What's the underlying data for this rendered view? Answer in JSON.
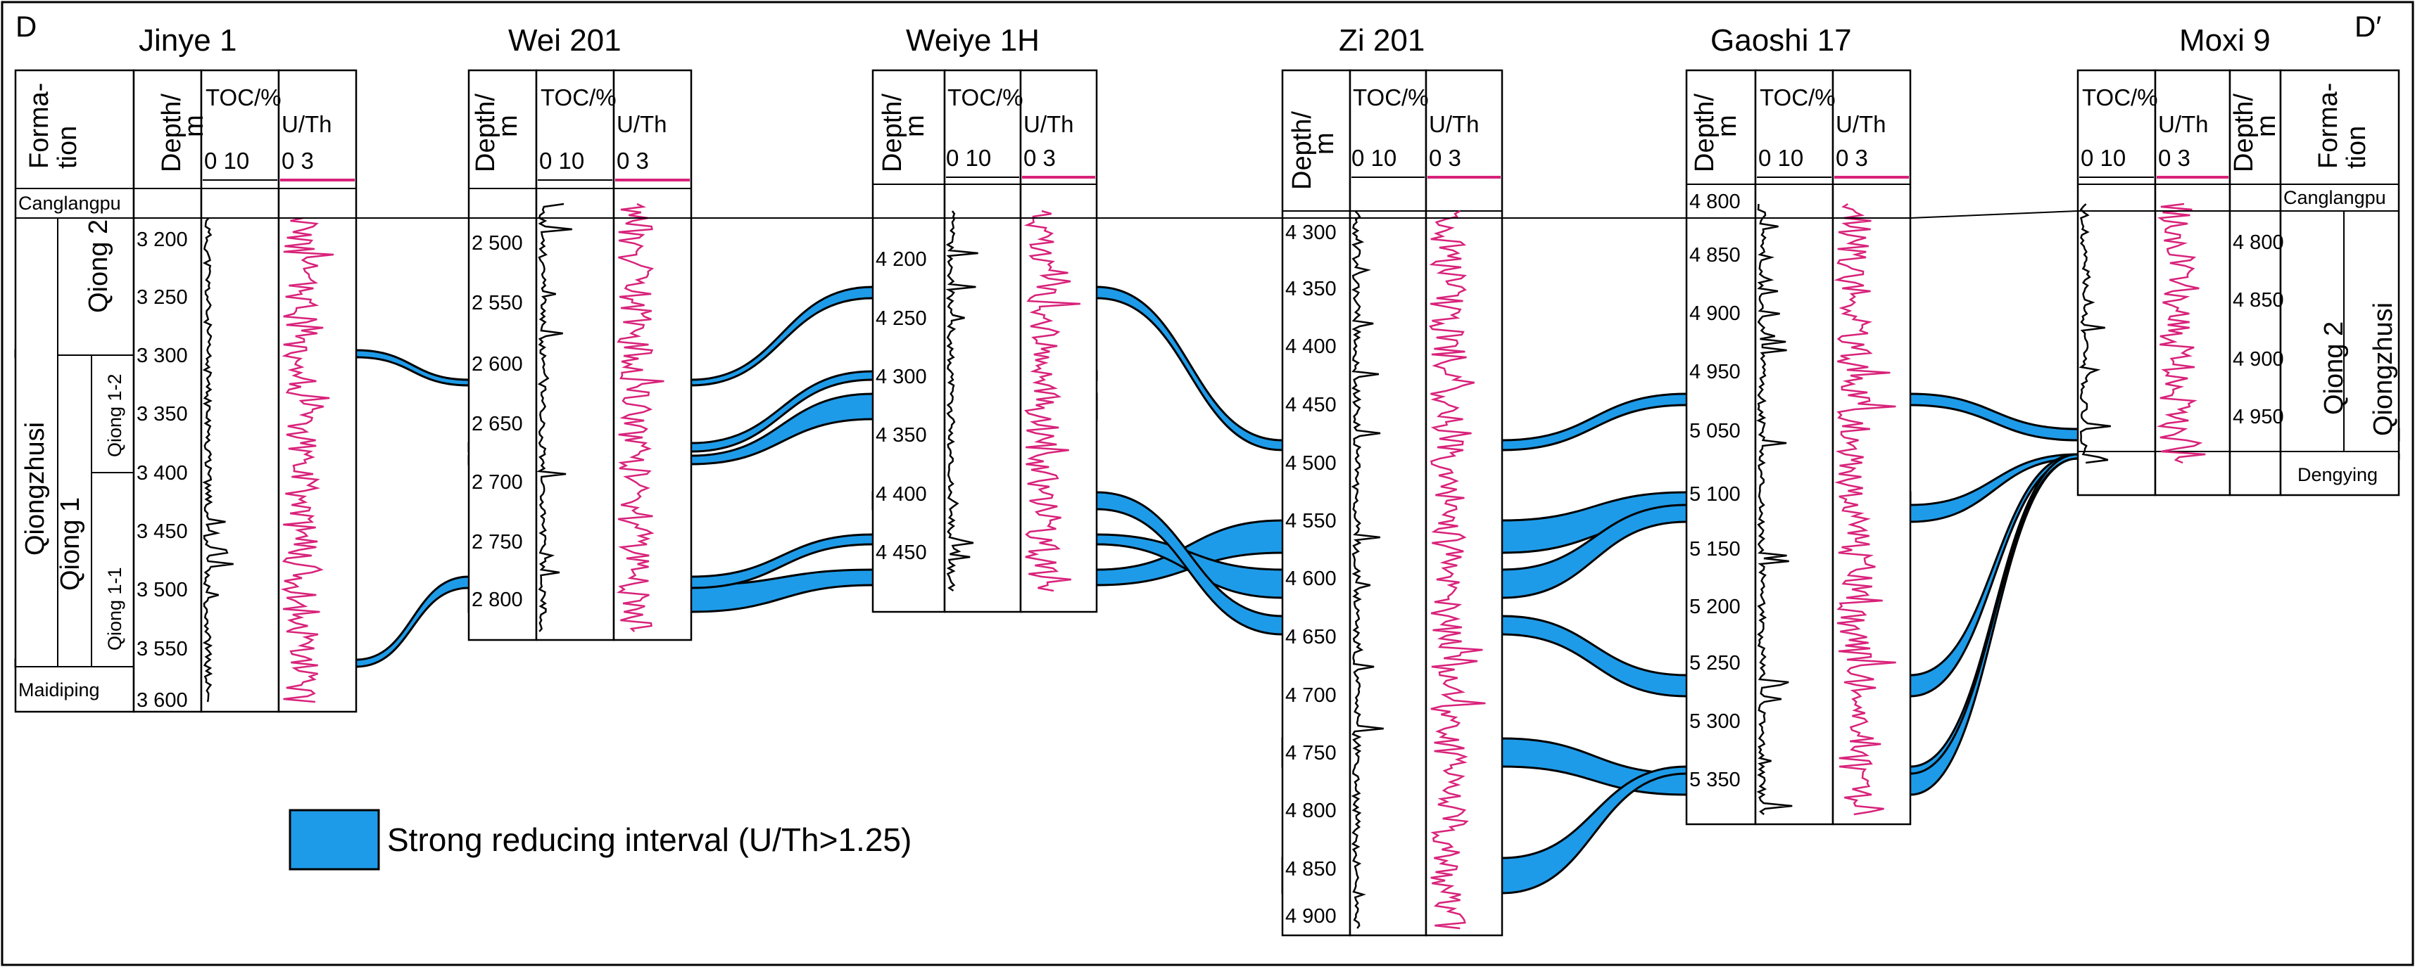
{
  "figure": {
    "corner_left": "D",
    "corner_right": "D′",
    "legend_label": "Strong reducing interval (U/Th>1.25)",
    "band_color": "#1e9be8",
    "uth_curve_color": "#d8227a",
    "toc_curve_color": "#000000"
  },
  "columns": {
    "formation": "Forma-tion",
    "depth": "Depth/m",
    "toc": "TOC/%",
    "toc_scale": "0  10",
    "uth": "U/Th",
    "uth_scale": "0   3"
  },
  "formations": {
    "canglangpu": "Canglangpu",
    "qiongzhusi": "Qiongzhusi",
    "qiong2": "Qiong 2",
    "qiong1": "Qiong 1",
    "qiong1_2": "Qiong 1-2",
    "qiong1_1": "Qiong 1-1",
    "maidiping": "Maidiping",
    "dengying": "Dengying"
  },
  "wells": [
    {
      "name": "Jinye 1",
      "depths": [
        "3 200",
        "3 250",
        "3 300",
        "3 350",
        "3 400",
        "3 450",
        "3 500",
        "3 550",
        "3 600"
      ]
    },
    {
      "name": "Wei 201",
      "depths": [
        "2 500",
        "2 550",
        "2 600",
        "2 650",
        "2 700",
        "2 750",
        "2 800"
      ]
    },
    {
      "name": "Weiye 1H",
      "depths": [
        "4 200",
        "4 250",
        "4 300",
        "4 350",
        "4 400",
        "4 450"
      ]
    },
    {
      "name": "Zi 201",
      "depths": [
        "4 300",
        "4 350",
        "4 400",
        "4 450",
        "4 500",
        "4 550",
        "4 600",
        "4 650",
        "4 700",
        "4 750",
        "4 800",
        "4 850",
        "4 900"
      ]
    },
    {
      "name": "Gaoshi 17",
      "depths": [
        "4 800",
        "4 850",
        "4 900",
        "4 950",
        "5 050",
        "5 100",
        "5 150",
        "5 200",
        "5 250",
        "5 300",
        "5 350"
      ]
    },
    {
      "name": "Moxi 9",
      "depths": [
        "4 800",
        "4 850",
        "4 900",
        "4 950"
      ]
    }
  ]
}
